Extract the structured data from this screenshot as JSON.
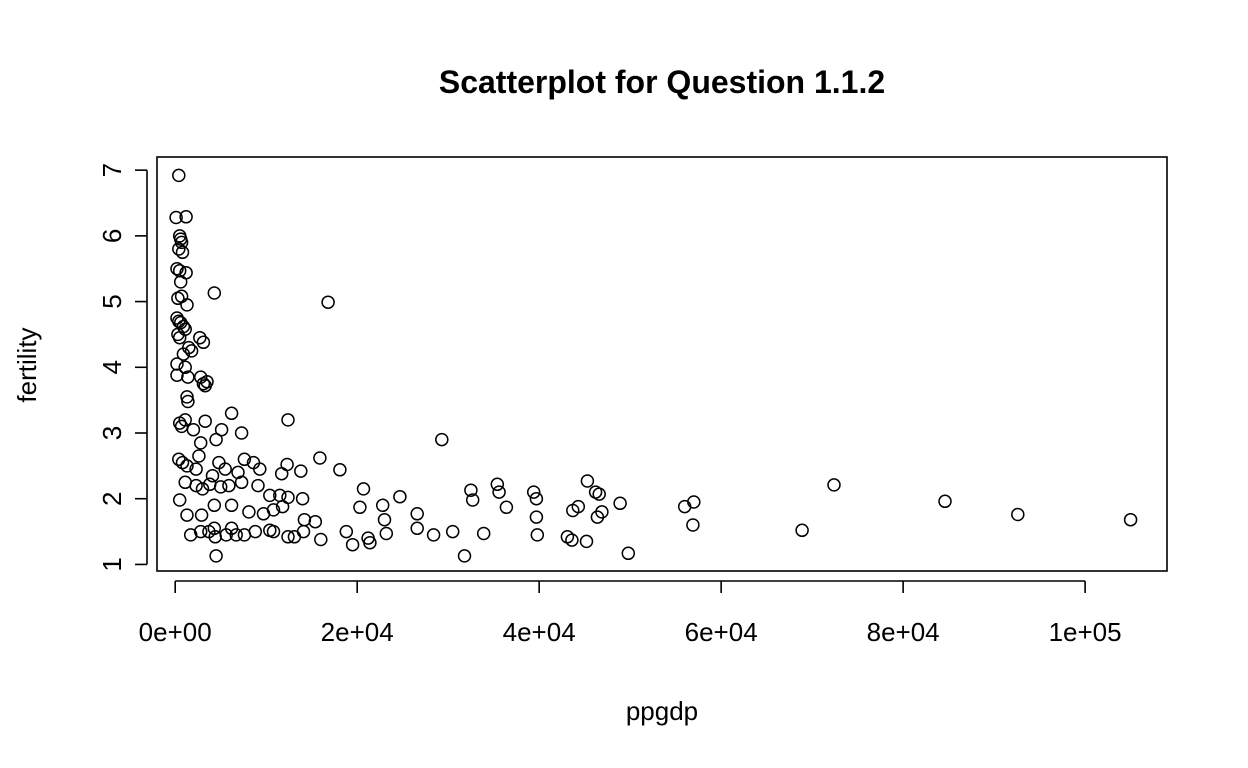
{
  "chart_data": {
    "type": "scatter",
    "title": "Scatterplot for Question 1.1.2",
    "xlabel": "ppgdp",
    "ylabel": "fertility",
    "xlim": [
      -2000,
      109000
    ],
    "ylim": [
      0.9,
      7.2
    ],
    "x_ticks": [
      0,
      20000,
      40000,
      60000,
      80000,
      100000
    ],
    "x_tick_labels": [
      "0e+00",
      "2e+04",
      "4e+04",
      "6e+04",
      "8e+04",
      "1e+05"
    ],
    "y_ticks": [
      1,
      2,
      3,
      4,
      5,
      6,
      7
    ],
    "y_tick_labels": [
      "1",
      "2",
      "3",
      "4",
      "5",
      "6",
      "7"
    ],
    "grid": false,
    "legend": "none",
    "marker": "open-circle",
    "points": [
      [
        400,
        6.92
      ],
      [
        100,
        6.28
      ],
      [
        1200,
        6.29
      ],
      [
        500,
        6.0
      ],
      [
        600,
        5.95
      ],
      [
        700,
        5.9
      ],
      [
        400,
        5.8
      ],
      [
        800,
        5.75
      ],
      [
        200,
        5.5
      ],
      [
        500,
        5.47
      ],
      [
        1200,
        5.44
      ],
      [
        600,
        5.3
      ],
      [
        300,
        5.05
      ],
      [
        700,
        5.08
      ],
      [
        1300,
        4.95
      ],
      [
        200,
        4.75
      ],
      [
        400,
        4.7
      ],
      [
        600,
        4.68
      ],
      [
        900,
        4.62
      ],
      [
        1100,
        4.58
      ],
      [
        300,
        4.5
      ],
      [
        500,
        4.45
      ],
      [
        1500,
        4.3
      ],
      [
        1800,
        4.25
      ],
      [
        900,
        4.2
      ],
      [
        2700,
        4.45
      ],
      [
        3100,
        4.38
      ],
      [
        200,
        4.05
      ],
      [
        1100,
        4.0
      ],
      [
        1400,
        3.85
      ],
      [
        2800,
        3.85
      ],
      [
        3100,
        3.75
      ],
      [
        3500,
        3.78
      ],
      [
        3300,
        3.72
      ],
      [
        1300,
        3.55
      ],
      [
        1400,
        3.48
      ],
      [
        4300,
        5.13
      ],
      [
        16800,
        4.99
      ],
      [
        200,
        3.88
      ],
      [
        500,
        3.15
      ],
      [
        700,
        3.1
      ],
      [
        1100,
        3.2
      ],
      [
        2000,
        3.05
      ],
      [
        3300,
        3.18
      ],
      [
        6200,
        3.3
      ],
      [
        5100,
        3.05
      ],
      [
        7300,
        3.0
      ],
      [
        12400,
        3.2
      ],
      [
        2800,
        2.85
      ],
      [
        4500,
        2.9
      ],
      [
        29300,
        2.9
      ],
      [
        400,
        2.6
      ],
      [
        800,
        2.55
      ],
      [
        1300,
        2.5
      ],
      [
        2300,
        2.45
      ],
      [
        2600,
        2.65
      ],
      [
        4100,
        2.35
      ],
      [
        4800,
        2.55
      ],
      [
        5500,
        2.45
      ],
      [
        6900,
        2.4
      ],
      [
        7600,
        2.6
      ],
      [
        8600,
        2.55
      ],
      [
        9300,
        2.45
      ],
      [
        11700,
        2.38
      ],
      [
        12300,
        2.52
      ],
      [
        13800,
        2.42
      ],
      [
        15900,
        2.62
      ],
      [
        18100,
        2.44
      ],
      [
        1100,
        2.25
      ],
      [
        2300,
        2.2
      ],
      [
        3000,
        2.15
      ],
      [
        3800,
        2.22
      ],
      [
        5000,
        2.18
      ],
      [
        5900,
        2.2
      ],
      [
        7300,
        2.25
      ],
      [
        9100,
        2.2
      ],
      [
        10400,
        2.05
      ],
      [
        11500,
        2.05
      ],
      [
        12400,
        2.02
      ],
      [
        14000,
        2.0
      ],
      [
        20700,
        2.15
      ],
      [
        24700,
        2.03
      ],
      [
        32500,
        2.13
      ],
      [
        35400,
        2.22
      ],
      [
        35600,
        2.1
      ],
      [
        39400,
        2.1
      ],
      [
        39700,
        2.0
      ],
      [
        45300,
        2.27
      ],
      [
        46200,
        2.1
      ],
      [
        46600,
        2.07
      ],
      [
        48900,
        1.93
      ],
      [
        72400,
        2.21
      ],
      [
        84600,
        1.96
      ],
      [
        500,
        1.98
      ],
      [
        1300,
        1.75
      ],
      [
        2900,
        1.75
      ],
      [
        4300,
        1.9
      ],
      [
        6200,
        1.9
      ],
      [
        8100,
        1.8
      ],
      [
        9700,
        1.77
      ],
      [
        10800,
        1.83
      ],
      [
        11800,
        1.88
      ],
      [
        14200,
        1.68
      ],
      [
        15400,
        1.65
      ],
      [
        20300,
        1.87
      ],
      [
        22800,
        1.9
      ],
      [
        26600,
        1.77
      ],
      [
        32700,
        1.98
      ],
      [
        36400,
        1.87
      ],
      [
        39700,
        1.72
      ],
      [
        43700,
        1.82
      ],
      [
        44300,
        1.88
      ],
      [
        46400,
        1.72
      ],
      [
        46900,
        1.8
      ],
      [
        56000,
        1.88
      ],
      [
        57000,
        1.95
      ],
      [
        92600,
        1.76
      ],
      [
        105000,
        1.68
      ],
      [
        1700,
        1.45
      ],
      [
        2800,
        1.5
      ],
      [
        3700,
        1.5
      ],
      [
        4300,
        1.55
      ],
      [
        5600,
        1.45
      ],
      [
        6200,
        1.55
      ],
      [
        7600,
        1.45
      ],
      [
        8800,
        1.5
      ],
      [
        10400,
        1.52
      ],
      [
        10800,
        1.5
      ],
      [
        12400,
        1.42
      ],
      [
        13100,
        1.42
      ],
      [
        14100,
        1.5
      ],
      [
        18800,
        1.5
      ],
      [
        21200,
        1.4
      ],
      [
        23000,
        1.68
      ],
      [
        23200,
        1.47
      ],
      [
        26600,
        1.55
      ],
      [
        28400,
        1.45
      ],
      [
        30500,
        1.5
      ],
      [
        33900,
        1.47
      ],
      [
        39800,
        1.45
      ],
      [
        43100,
        1.42
      ],
      [
        43600,
        1.37
      ],
      [
        45200,
        1.35
      ],
      [
        56900,
        1.6
      ],
      [
        68900,
        1.52
      ],
      [
        4400,
        1.42
      ],
      [
        6700,
        1.45
      ],
      [
        16000,
        1.38
      ],
      [
        19500,
        1.3
      ],
      [
        21400,
        1.33
      ],
      [
        4500,
        1.13
      ],
      [
        31800,
        1.13
      ],
      [
        49800,
        1.17
      ]
    ]
  }
}
